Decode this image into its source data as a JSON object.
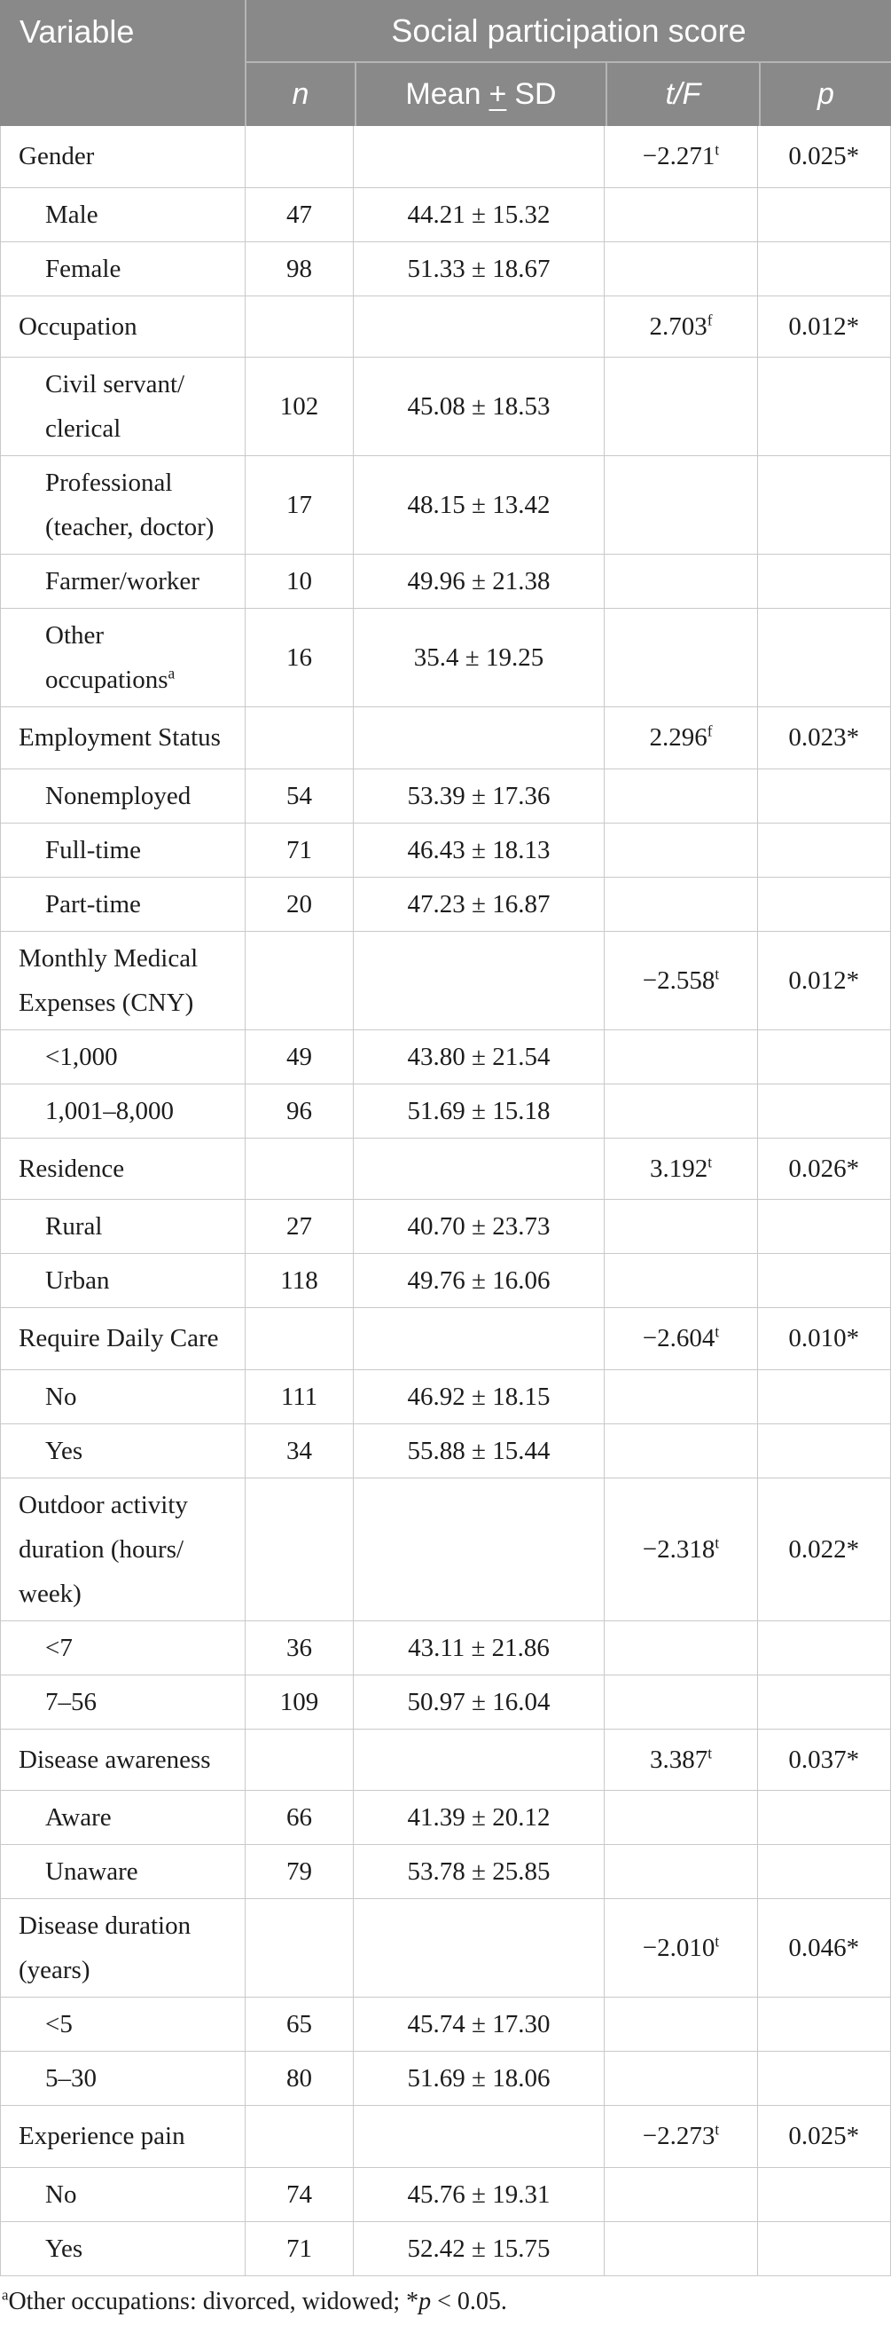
{
  "colors": {
    "header_bg": "#898989",
    "header_text": "#ffffff",
    "header_divider": "#b5b5b5",
    "body_border": "#c9c9c9",
    "body_text": "#1c1c1c"
  },
  "table": {
    "header": {
      "variable_label": "Variable",
      "group_title": "Social participation score",
      "col_n": "n",
      "col_mean_prefix": "Mean",
      "col_mean_pm": "+",
      "col_mean_suffix": "SD",
      "col_tf": "t/F",
      "col_p": "p"
    },
    "rows": [
      {
        "label": "Gender",
        "category": true,
        "n": "",
        "mean": "",
        "tf": "−2.271",
        "tf_sup": "t",
        "p": "0.025*"
      },
      {
        "label": "Male",
        "category": false,
        "n": "47",
        "mean": "44.21 ± 15.32",
        "tf": "",
        "tf_sup": "",
        "p": ""
      },
      {
        "label": "Female",
        "category": false,
        "n": "98",
        "mean": "51.33 ± 18.67",
        "tf": "",
        "tf_sup": "",
        "p": ""
      },
      {
        "label": "Occupation",
        "category": true,
        "n": "",
        "mean": "",
        "tf": "2.703",
        "tf_sup": "f",
        "p": "0.012*"
      },
      {
        "label": "Civil servant/\nclerical",
        "category": false,
        "n": "102",
        "mean": "45.08 ± 18.53",
        "tf": "",
        "tf_sup": "",
        "p": ""
      },
      {
        "label": "Professional\n(teacher, doctor)",
        "category": false,
        "n": "17",
        "mean": "48.15 ± 13.42",
        "tf": "",
        "tf_sup": "",
        "p": ""
      },
      {
        "label": "Farmer/worker",
        "category": false,
        "n": "10",
        "mean": "49.96 ± 21.38",
        "tf": "",
        "tf_sup": "",
        "p": ""
      },
      {
        "label": "Other\noccupations",
        "label_sup": "a",
        "category": false,
        "n": "16",
        "mean": "35.4 ± 19.25",
        "tf": "",
        "tf_sup": "",
        "p": ""
      },
      {
        "label": "Employment Status",
        "category": true,
        "n": "",
        "mean": "",
        "tf": "2.296",
        "tf_sup": "f",
        "p": "0.023*"
      },
      {
        "label": "Nonemployed",
        "category": false,
        "n": "54",
        "mean": "53.39 ± 17.36",
        "tf": "",
        "tf_sup": "",
        "p": ""
      },
      {
        "label": "Full-time",
        "category": false,
        "n": "71",
        "mean": "46.43 ± 18.13",
        "tf": "",
        "tf_sup": "",
        "p": ""
      },
      {
        "label": "Part-time",
        "category": false,
        "n": "20",
        "mean": "47.23 ± 16.87",
        "tf": "",
        "tf_sup": "",
        "p": ""
      },
      {
        "label": "Monthly Medical\nExpenses (CNY)",
        "category": true,
        "n": "",
        "mean": "",
        "tf": "−2.558",
        "tf_sup": "t",
        "p": "0.012*"
      },
      {
        "label": "<1,000",
        "category": false,
        "n": "49",
        "mean": "43.80 ± 21.54",
        "tf": "",
        "tf_sup": "",
        "p": ""
      },
      {
        "label": "1,001–8,000",
        "category": false,
        "n": "96",
        "mean": "51.69 ± 15.18",
        "tf": "",
        "tf_sup": "",
        "p": ""
      },
      {
        "label": "Residence",
        "category": true,
        "n": "",
        "mean": "",
        "tf": "3.192",
        "tf_sup": "t",
        "p": "0.026*"
      },
      {
        "label": "Rural",
        "category": false,
        "n": "27",
        "mean": "40.70 ± 23.73",
        "tf": "",
        "tf_sup": "",
        "p": ""
      },
      {
        "label": "Urban",
        "category": false,
        "n": "118",
        "mean": "49.76 ± 16.06",
        "tf": "",
        "tf_sup": "",
        "p": ""
      },
      {
        "label": "Require Daily Care",
        "category": true,
        "n": "",
        "mean": "",
        "tf": "−2.604",
        "tf_sup": "t",
        "p": "0.010*"
      },
      {
        "label": "No",
        "category": false,
        "n": "111",
        "mean": "46.92 ± 18.15",
        "tf": "",
        "tf_sup": "",
        "p": ""
      },
      {
        "label": "Yes",
        "category": false,
        "n": "34",
        "mean": "55.88 ± 15.44",
        "tf": "",
        "tf_sup": "",
        "p": ""
      },
      {
        "label": "Outdoor activity\nduration (hours/\nweek)",
        "category": true,
        "n": "",
        "mean": "",
        "tf": "−2.318",
        "tf_sup": "t",
        "p": "0.022*"
      },
      {
        "label": "<7",
        "category": false,
        "n": "36",
        "mean": "43.11 ± 21.86",
        "tf": "",
        "tf_sup": "",
        "p": ""
      },
      {
        "label": "7–56",
        "category": false,
        "n": "109",
        "mean": "50.97 ± 16.04",
        "tf": "",
        "tf_sup": "",
        "p": ""
      },
      {
        "label": "Disease awareness",
        "category": true,
        "n": "",
        "mean": "",
        "tf": "3.387",
        "tf_sup": "t",
        "p": "0.037*"
      },
      {
        "label": "Aware",
        "category": false,
        "n": "66",
        "mean": "41.39 ± 20.12",
        "tf": "",
        "tf_sup": "",
        "p": ""
      },
      {
        "label": "Unaware",
        "category": false,
        "n": "79",
        "mean": "53.78 ± 25.85",
        "tf": "",
        "tf_sup": "",
        "p": ""
      },
      {
        "label": "Disease duration\n(years)",
        "category": true,
        "n": "",
        "mean": "",
        "tf": "−2.010",
        "tf_sup": "t",
        "p": "0.046*"
      },
      {
        "label": "<5",
        "category": false,
        "n": "65",
        "mean": "45.74 ± 17.30",
        "tf": "",
        "tf_sup": "",
        "p": ""
      },
      {
        "label": "5–30",
        "category": false,
        "n": "80",
        "mean": "51.69 ± 18.06",
        "tf": "",
        "tf_sup": "",
        "p": ""
      },
      {
        "label": "Experience pain",
        "category": true,
        "n": "",
        "mean": "",
        "tf": "−2.273",
        "tf_sup": "t",
        "p": "0.025*"
      },
      {
        "label": "No",
        "category": false,
        "n": "74",
        "mean": "45.76 ± 19.31",
        "tf": "",
        "tf_sup": "",
        "p": ""
      },
      {
        "label": "Yes",
        "category": false,
        "n": "71",
        "mean": "52.42 ± 15.75",
        "tf": "",
        "tf_sup": "",
        "p": ""
      }
    ],
    "footnote": {
      "sup": "a",
      "text": "Other occupations: divorced, widowed; *",
      "p_italic": "p",
      "tail": " < 0.05."
    }
  }
}
